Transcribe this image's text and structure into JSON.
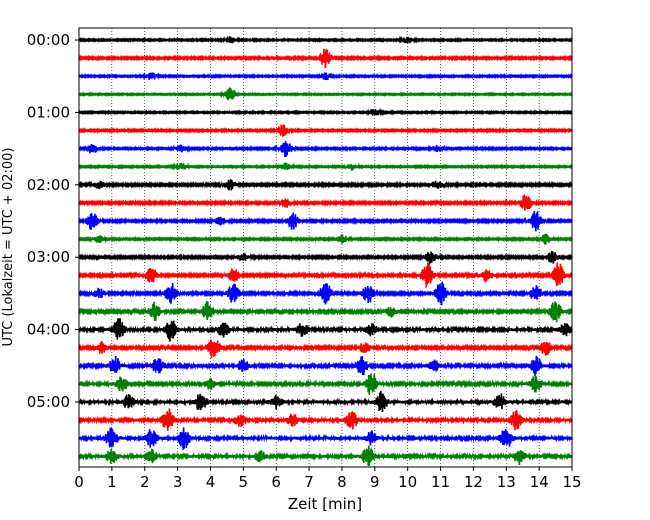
{
  "chart_data": {
    "type": "line",
    "title": "",
    "xlabel": "Zeit  [min]",
    "ylabel": "UTC (Lokalzeit = UTC + 02:00)",
    "xlim": [
      0,
      15
    ],
    "x_ticks": [
      "0",
      "1",
      "2",
      "3",
      "4",
      "5",
      "6",
      "7",
      "8",
      "9",
      "10",
      "11",
      "12",
      "13",
      "14",
      "15"
    ],
    "y_ticks": [
      {
        "label": "00:00",
        "trace": 0
      },
      {
        "label": "01:00",
        "trace": 4
      },
      {
        "label": "02:00",
        "trace": 8
      },
      {
        "label": "03:00",
        "trace": 12
      },
      {
        "label": "04:00",
        "trace": 16
      },
      {
        "label": "05:00",
        "trace": 20
      }
    ],
    "trace_minutes": 15,
    "trace_count": 24,
    "colors": [
      "#000000",
      "#ff0000",
      "#0000ff",
      "#008000"
    ],
    "vertical_grid": "dotted",
    "series": [
      {
        "trace": 0,
        "base": 0.8,
        "events": [
          [
            4.6,
            0.9
          ],
          [
            10.0,
            0.7
          ]
        ]
      },
      {
        "trace": 1,
        "base": 1.0,
        "events": [
          [
            7.5,
            2.4
          ]
        ]
      },
      {
        "trace": 2,
        "base": 0.8,
        "events": [
          [
            2.2,
            0.9
          ],
          [
            7.5,
            0.9
          ]
        ]
      },
      {
        "trace": 3,
        "base": 0.7,
        "events": [
          [
            4.6,
            1.6
          ]
        ]
      },
      {
        "trace": 4,
        "base": 0.8,
        "events": [
          [
            9.0,
            0.8
          ]
        ]
      },
      {
        "trace": 5,
        "base": 0.9,
        "events": [
          [
            6.2,
            1.4
          ]
        ]
      },
      {
        "trace": 6,
        "base": 0.9,
        "events": [
          [
            0.4,
            1.2
          ],
          [
            6.3,
            2.0
          ],
          [
            3.1,
            0.8
          ],
          [
            10.9,
            0.8
          ]
        ]
      },
      {
        "trace": 7,
        "base": 0.8,
        "events": [
          [
            3.1,
            0.9
          ],
          [
            6.3,
            0.9
          ],
          [
            8.3,
            0.8
          ]
        ]
      },
      {
        "trace": 8,
        "base": 1.1,
        "events": [
          [
            4.6,
            1.2
          ],
          [
            10.9,
            0.9
          ],
          [
            0.6,
            0.9
          ]
        ]
      },
      {
        "trace": 9,
        "base": 1.1,
        "events": [
          [
            13.6,
            2.2
          ],
          [
            6.3,
            1.1
          ]
        ]
      },
      {
        "trace": 10,
        "base": 1.1,
        "events": [
          [
            0.4,
            2.2
          ],
          [
            6.5,
            2.0
          ],
          [
            13.9,
            2.5
          ],
          [
            4.3,
            1.0
          ]
        ]
      },
      {
        "trace": 11,
        "base": 0.9,
        "events": [
          [
            8.0,
            1.0
          ],
          [
            14.2,
            1.2
          ],
          [
            0.6,
            0.9
          ]
        ]
      },
      {
        "trace": 12,
        "base": 1.1,
        "events": [
          [
            10.7,
            1.8
          ],
          [
            14.4,
            1.6
          ],
          [
            5.0,
            1.0
          ]
        ]
      },
      {
        "trace": 13,
        "base": 1.2,
        "events": [
          [
            2.2,
            2.0
          ],
          [
            10.6,
            3.0
          ],
          [
            14.6,
            3.2
          ],
          [
            4.7,
            1.6
          ],
          [
            12.4,
            1.6
          ]
        ]
      },
      {
        "trace": 14,
        "base": 1.2,
        "events": [
          [
            2.8,
            2.6
          ],
          [
            4.7,
            2.4
          ],
          [
            7.5,
            2.8
          ],
          [
            8.8,
            2.4
          ],
          [
            11.0,
            3.0
          ],
          [
            13.9,
            2.0
          ],
          [
            0.6,
            1.2
          ]
        ]
      },
      {
        "trace": 15,
        "base": 1.3,
        "events": [
          [
            2.3,
            2.2
          ],
          [
            3.9,
            2.6
          ],
          [
            14.5,
            2.6
          ],
          [
            9.5,
            1.2
          ]
        ]
      },
      {
        "trace": 16,
        "base": 1.5,
        "events": [
          [
            1.2,
            2.8
          ],
          [
            2.8,
            2.8
          ],
          [
            4.4,
            2.0
          ],
          [
            6.8,
            1.6
          ],
          [
            8.9,
            1.4
          ],
          [
            14.8,
            1.6
          ]
        ]
      },
      {
        "trace": 17,
        "base": 1.3,
        "events": [
          [
            4.1,
            2.8
          ],
          [
            0.7,
            1.4
          ],
          [
            8.7,
            1.4
          ],
          [
            14.2,
            1.8
          ]
        ]
      },
      {
        "trace": 18,
        "base": 1.4,
        "events": [
          [
            1.1,
            2.2
          ],
          [
            2.4,
            2.0
          ],
          [
            5.0,
            1.6
          ],
          [
            8.6,
            2.4
          ],
          [
            13.9,
            2.4
          ],
          [
            10.8,
            1.4
          ]
        ]
      },
      {
        "trace": 19,
        "base": 1.4,
        "events": [
          [
            8.9,
            3.0
          ],
          [
            1.3,
            1.8
          ],
          [
            13.9,
            2.0
          ],
          [
            4.0,
            1.4
          ]
        ]
      },
      {
        "trace": 20,
        "base": 1.6,
        "events": [
          [
            3.7,
            2.2
          ],
          [
            9.2,
            2.4
          ],
          [
            12.8,
            2.0
          ],
          [
            1.5,
            1.6
          ],
          [
            6.0,
            1.5
          ]
        ]
      },
      {
        "trace": 21,
        "base": 1.5,
        "events": [
          [
            2.7,
            2.8
          ],
          [
            8.3,
            2.4
          ],
          [
            13.3,
            2.4
          ],
          [
            4.9,
            1.6
          ],
          [
            6.5,
            1.4
          ]
        ]
      },
      {
        "trace": 22,
        "base": 1.6,
        "events": [
          [
            1.0,
            2.6
          ],
          [
            2.2,
            2.2
          ],
          [
            3.2,
            2.6
          ],
          [
            13.0,
            2.6
          ],
          [
            8.9,
            1.6
          ]
        ]
      },
      {
        "trace": 23,
        "base": 1.5,
        "events": [
          [
            8.8,
            2.6
          ],
          [
            1.0,
            1.6
          ],
          [
            2.2,
            1.6
          ],
          [
            13.4,
            1.8
          ],
          [
            5.5,
            1.4
          ]
        ]
      }
    ]
  }
}
